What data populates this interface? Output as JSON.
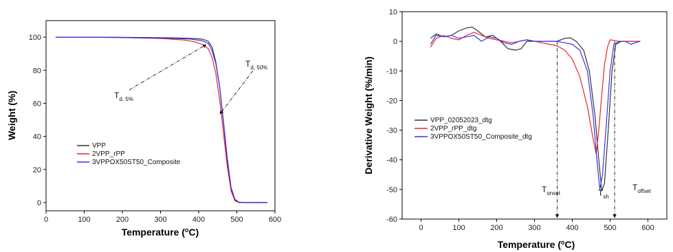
{
  "chart_data": [
    {
      "type": "line",
      "xlabel": "Temperature (",
      "xlabel_sup": "o",
      "xlabel_end": "C)",
      "ylabel": "Weight (%)",
      "xlim": [
        0,
        600
      ],
      "ylim": [
        -5,
        110
      ],
      "xticks": [
        0,
        100,
        200,
        300,
        400,
        500,
        600
      ],
      "yticks": [
        0,
        20,
        40,
        60,
        80,
        100
      ],
      "legend_position": "center-left",
      "series": [
        {
          "name": "VPP",
          "color": "#333333",
          "x": [
            25,
            100,
            200,
            300,
            380,
            410,
            425,
            435,
            445,
            455,
            465,
            475,
            485,
            495,
            505,
            520,
            580
          ],
          "y": [
            100,
            100,
            99.9,
            99.7,
            99.3,
            98.8,
            97.5,
            94,
            85,
            70,
            48,
            25,
            8,
            1.5,
            0.2,
            0,
            0
          ]
        },
        {
          "name": "2VPP_rPP",
          "color": "#ee2222",
          "x": [
            25,
            100,
            200,
            300,
            360,
            390,
            410,
            425,
            435,
            445,
            455,
            465,
            475,
            485,
            495,
            505,
            520,
            580
          ],
          "y": [
            100,
            100,
            99.7,
            99.2,
            98.3,
            97.2,
            95.5,
            93,
            88,
            78,
            62,
            42,
            22,
            7,
            1,
            0,
            0,
            0
          ]
        },
        {
          "name": "3VPPOX50ST50_Composite",
          "color": "#3333ee",
          "x": [
            25,
            100,
            200,
            300,
            380,
            410,
            425,
            435,
            445,
            455,
            465,
            475,
            485,
            495,
            505,
            520,
            580
          ],
          "y": [
            100,
            100,
            99.8,
            99.5,
            98.8,
            97.8,
            96.2,
            92,
            84,
            70,
            49,
            27,
            9,
            2,
            0.3,
            0,
            0
          ]
        }
      ],
      "annotations": [
        {
          "label": "T",
          "sub": "d, 5%"
        },
        {
          "label": "T",
          "sub": "d, 50%"
        }
      ]
    },
    {
      "type": "line",
      "xlabel": "Temperature (",
      "xlabel_sup": "o",
      "xlabel_end": "C)",
      "ylabel": "Derivative Weight (%/min)",
      "xlim": [
        -50,
        650
      ],
      "ylim": [
        -60,
        10
      ],
      "xticks": [
        0,
        100,
        200,
        300,
        400,
        500,
        600
      ],
      "yticks": [
        10,
        0,
        -10,
        -20,
        -30,
        -40,
        -50,
        -60
      ],
      "legend_position": "center-left",
      "series": [
        {
          "name": "VPP_02052023_dtg",
          "color": "#333333",
          "x": [
            25,
            40,
            60,
            80,
            100,
            120,
            135,
            150,
            170,
            190,
            210,
            230,
            250,
            265,
            280,
            300,
            330,
            360,
            380,
            395,
            410,
            430,
            445,
            460,
            470,
            478,
            485,
            495,
            505,
            515,
            530,
            560,
            580
          ],
          "y": [
            1,
            2.5,
            1.5,
            2,
            3.5,
            4.5,
            4.8,
            3.5,
            1.5,
            2,
            0,
            -2.5,
            -3,
            -2.5,
            0,
            0,
            0,
            0,
            1,
            1.2,
            0,
            -3,
            -10,
            -25,
            -40,
            -50.5,
            -48,
            -30,
            -10,
            -1,
            0,
            0,
            0
          ]
        },
        {
          "name": "2VPP_rPP_dtg",
          "color": "#ee2222",
          "x": [
            25,
            40,
            60,
            80,
            100,
            120,
            140,
            160,
            180,
            200,
            220,
            240,
            260,
            280,
            300,
            320,
            340,
            360,
            380,
            400,
            420,
            440,
            455,
            463,
            470,
            478,
            485,
            493,
            500,
            510,
            520,
            550,
            580
          ],
          "y": [
            -2,
            1,
            2,
            1,
            0.5,
            2,
            3,
            2,
            1,
            0.5,
            0,
            -0.5,
            0,
            0.5,
            0,
            -0.5,
            -1,
            -1.5,
            -3,
            -6,
            -12,
            -22,
            -33,
            -38,
            -30,
            -18,
            -8,
            -2,
            0.5,
            0.3,
            0,
            0,
            0
          ]
        },
        {
          "name": "3VPPOX50ST50_Composite_dtg",
          "color": "#3333ee",
          "x": [
            25,
            40,
            60,
            80,
            100,
            120,
            140,
            160,
            180,
            200,
            220,
            240,
            260,
            280,
            300,
            330,
            360,
            380,
            400,
            420,
            440,
            455,
            465,
            473,
            480,
            490,
            500,
            510,
            525,
            540,
            555,
            580
          ],
          "y": [
            -1,
            2,
            1.5,
            2,
            1,
            1.5,
            2,
            0,
            1.5,
            1,
            -0.5,
            -1,
            0,
            0.5,
            0,
            0,
            0,
            -0.5,
            -1,
            -3,
            -10,
            -25,
            -40,
            -50,
            -45,
            -28,
            -10,
            -1,
            0,
            0,
            -1,
            0
          ]
        }
      ],
      "annotations": [
        {
          "label": "T",
          "sub": "onset",
          "x": 360
        },
        {
          "label": "T",
          "sub": "sh",
          "x": 475
        },
        {
          "label": "T",
          "sub": "offset",
          "x": 512
        }
      ]
    }
  ]
}
